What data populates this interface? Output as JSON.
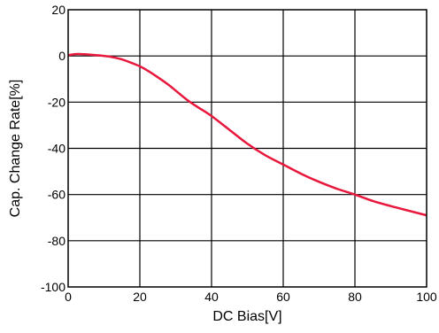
{
  "chart_data": {
    "type": "line",
    "title": "",
    "xlabel": "DC Bias[V]",
    "ylabel": "Cap. Change Rate[%]",
    "xlim": [
      0,
      100
    ],
    "ylim": [
      -100,
      20
    ],
    "xticks": [
      0,
      20,
      40,
      60,
      80,
      100
    ],
    "yticks": [
      20,
      0,
      -20,
      -40,
      -60,
      -80,
      -100
    ],
    "grid": true,
    "legend": "none",
    "series": [
      {
        "color": "#e8173c",
        "x": [
          0,
          2,
          5,
          8,
          10,
          12,
          15,
          18,
          20,
          22,
          25,
          28,
          30,
          33,
          36,
          40,
          45,
          50,
          55,
          60,
          65,
          70,
          75,
          80,
          85,
          90,
          95,
          100
        ],
        "y": [
          0.3,
          0.8,
          0.7,
          0.3,
          0,
          -0.4,
          -1.5,
          -3.2,
          -4.5,
          -6.2,
          -9.2,
          -12.5,
          -15,
          -18.8,
          -22,
          -26,
          -32,
          -38,
          -43,
          -47,
          -51,
          -54.5,
          -57.5,
          -60,
          -62.8,
          -65,
          -67,
          -69
        ]
      }
    ]
  }
}
